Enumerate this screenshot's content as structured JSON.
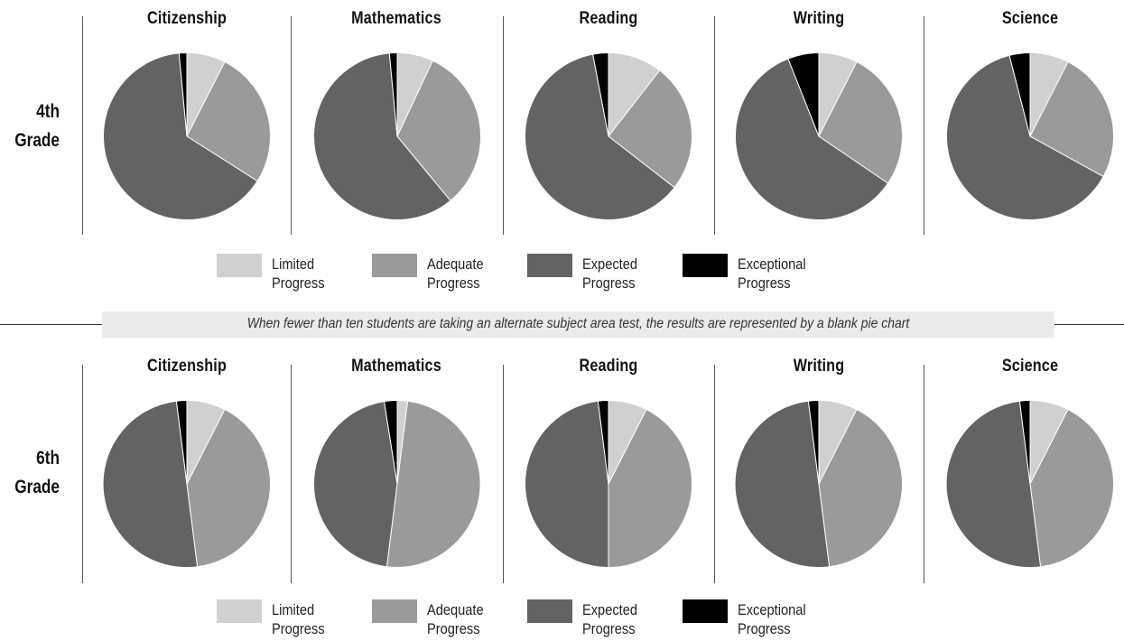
{
  "note": "When fewer than ten students are taking an alternate subject area test, the results are represented by a blank pie chart",
  "legend": [
    {
      "line1": "Limited",
      "line2": "Progress",
      "color": "#d0d0d0"
    },
    {
      "line1": "Adequate",
      "line2": "Progress",
      "color": "#9a9a9a"
    },
    {
      "line1": "Expected",
      "line2": "Progress",
      "color": "#636363"
    },
    {
      "line1": "Exceptional",
      "line2": "Progress",
      "color": "#000000"
    }
  ],
  "chart_data": [
    {
      "type": "pie",
      "grade_line1": "4th",
      "grade_line2": "Grade",
      "categories": [
        "Limited Progress",
        "Adequate Progress",
        "Expected Progress",
        "Exceptional Progress"
      ],
      "colors": [
        "#d0d0d0",
        "#9a9a9a",
        "#636363",
        "#000000"
      ],
      "subjects": [
        {
          "name": "Citizenship",
          "values": [
            7.5,
            26.5,
            64.5,
            1.5
          ]
        },
        {
          "name": "Mathematics",
          "values": [
            7.0,
            32.0,
            59.5,
            1.5
          ]
        },
        {
          "name": "Reading",
          "values": [
            10.5,
            25.0,
            61.5,
            3.0
          ]
        },
        {
          "name": "Writing",
          "values": [
            7.5,
            27.0,
            59.5,
            6.0
          ]
        },
        {
          "name": "Science",
          "values": [
            7.5,
            25.5,
            63.0,
            4.0
          ]
        }
      ]
    },
    {
      "type": "pie",
      "grade_line1": "6th",
      "grade_line2": "Grade",
      "categories": [
        "Limited Progress",
        "Adequate Progress",
        "Expected Progress",
        "Exceptional Progress"
      ],
      "colors": [
        "#d0d0d0",
        "#9a9a9a",
        "#636363",
        "#000000"
      ],
      "subjects": [
        {
          "name": "Citizenship",
          "values": [
            7.5,
            40.5,
            50.0,
            2.0
          ]
        },
        {
          "name": "Mathematics",
          "values": [
            2.0,
            50.0,
            45.5,
            2.5
          ]
        },
        {
          "name": "Reading",
          "values": [
            7.5,
            42.5,
            48.0,
            2.0
          ]
        },
        {
          "name": "Writing",
          "values": [
            7.5,
            40.5,
            50.0,
            2.0
          ]
        },
        {
          "name": "Science",
          "values": [
            7.5,
            40.5,
            50.0,
            2.0
          ]
        }
      ]
    }
  ]
}
